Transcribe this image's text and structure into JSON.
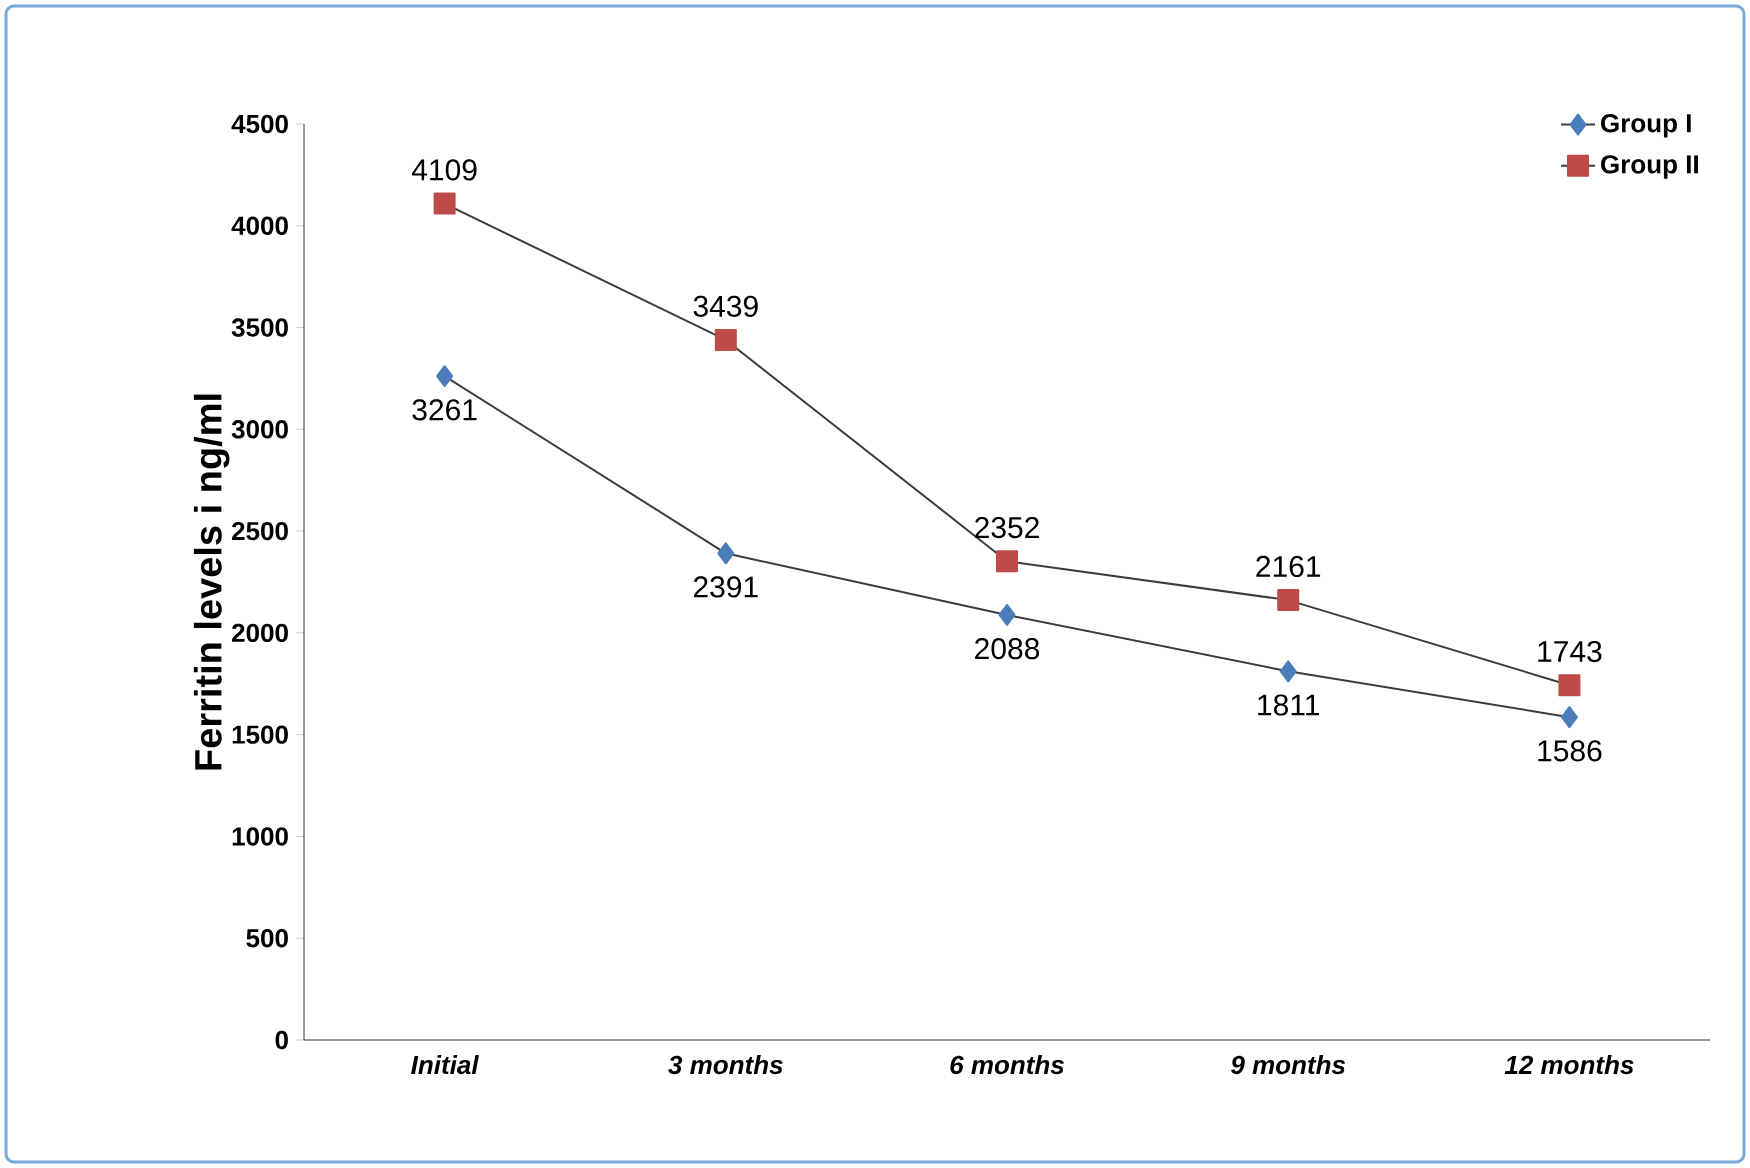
{
  "chart_data": {
    "type": "line",
    "ylabel": "Ferritin levels i ng/ml",
    "categories": [
      "Initial",
      "3 months",
      "6 months",
      "9 months",
      "12 months"
    ],
    "series": [
      {
        "name": "Group I",
        "color": "#4a7ebb",
        "values": [
          3261,
          2391,
          2088,
          1811,
          1586
        ],
        "marker": "diamond"
      },
      {
        "name": "Group II",
        "color": "#be4b48",
        "values": [
          4109,
          3439,
          2352,
          2161,
          1743
        ],
        "marker": "square"
      }
    ],
    "ylim": [
      0,
      4500
    ],
    "yticks": [
      0,
      500,
      1000,
      1500,
      2000,
      2500,
      3000,
      3500,
      4000,
      4500
    ],
    "grid": false,
    "legend": "top right",
    "data_labels": true,
    "line_style": "solid"
  }
}
